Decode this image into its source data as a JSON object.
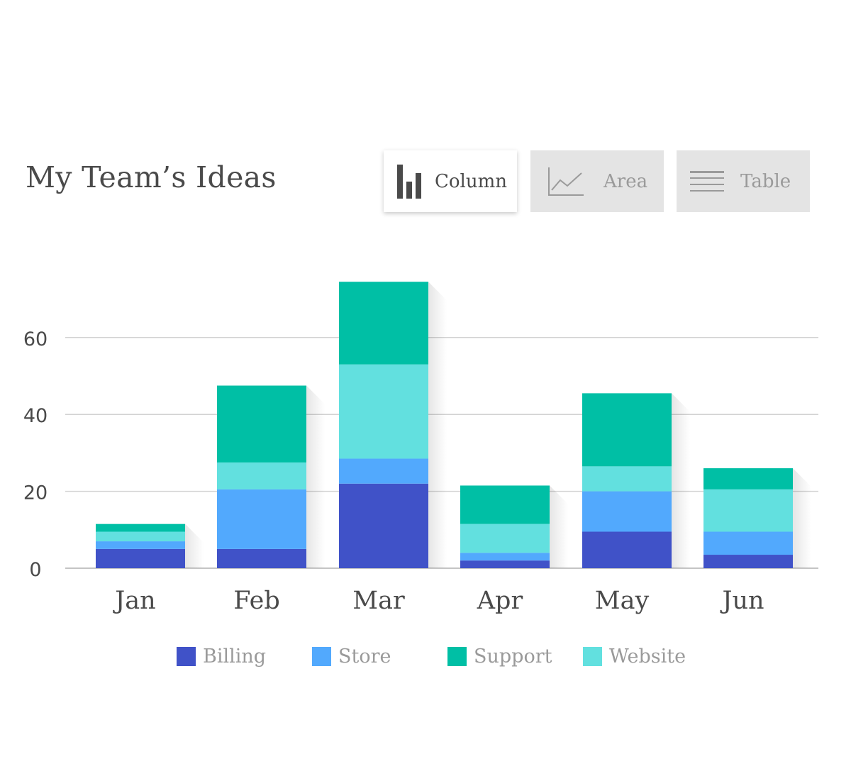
{
  "header": {
    "title": "My Team’s Ideas"
  },
  "tabs": [
    {
      "label": "Column",
      "icon": "column-chart-icon",
      "active": true
    },
    {
      "label": "Area",
      "icon": "area-chart-icon",
      "active": false
    },
    {
      "label": "Table",
      "icon": "table-lines-icon",
      "active": false
    }
  ],
  "colors": {
    "Billing": "#4052c8",
    "Store": "#52a9fd",
    "Support": "#00bfa5",
    "Website": "#62e0df"
  },
  "chart_data": {
    "type": "bar",
    "stacked": true,
    "categories": [
      "Jan",
      "Feb",
      "Mar",
      "Apr",
      "May",
      "Jun"
    ],
    "series": [
      {
        "name": "Billing",
        "values": [
          5,
          5,
          22,
          2,
          9.5,
          3.5
        ]
      },
      {
        "name": "Store",
        "values": [
          2,
          15.5,
          6.5,
          2,
          10.5,
          6
        ]
      },
      {
        "name": "Website",
        "values": [
          2.5,
          7,
          24.5,
          7.5,
          6.5,
          11
        ]
      },
      {
        "name": "Support",
        "values": [
          2,
          20,
          21.5,
          10,
          19,
          5.5
        ]
      }
    ],
    "yticks": [
      0,
      20,
      40,
      60
    ],
    "ylim": [
      0,
      75
    ],
    "grid": true,
    "legend": "bottom"
  }
}
